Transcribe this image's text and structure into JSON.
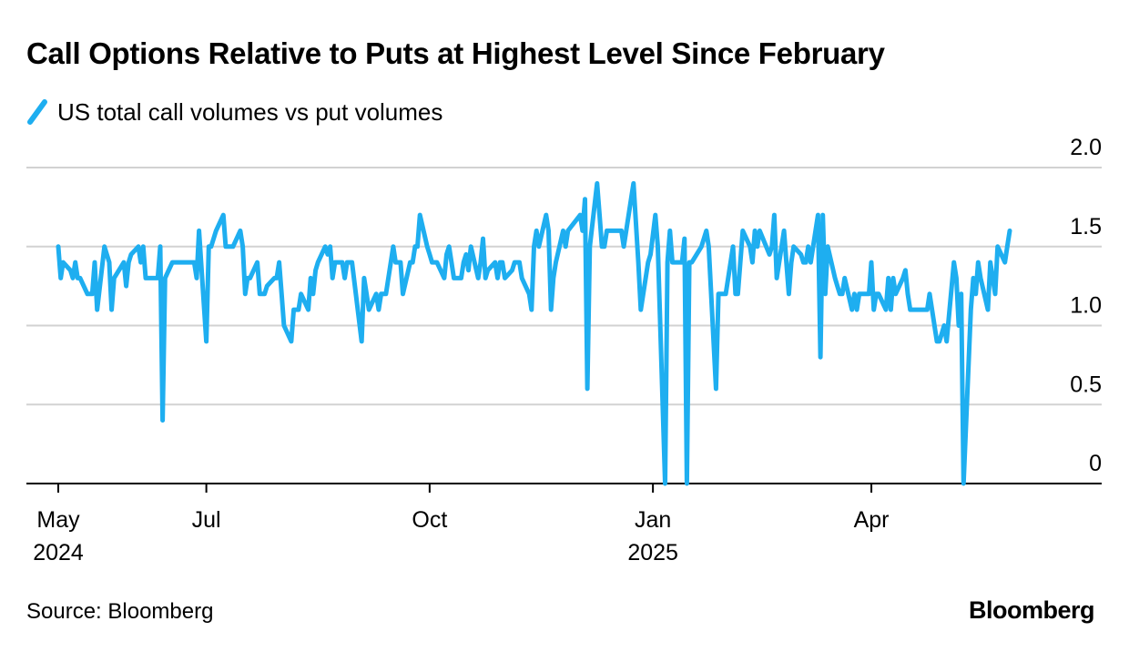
{
  "title": "Call Options Relative to Puts at Highest Level Since February",
  "legend": {
    "label": "US total call volumes vs put volumes",
    "color": "#1eaef0"
  },
  "source": "Source: Bloomberg",
  "brand": "Bloomberg",
  "chart_data": {
    "type": "line",
    "title": "Call Options Relative to Puts at Highest Level Since February",
    "ylim": [
      0,
      2.0
    ],
    "yticks": [
      0,
      0.5,
      1.0,
      1.5,
      2.0
    ],
    "ytick_labels": [
      "0",
      "0.5",
      "1.0",
      "1.5",
      "2.0"
    ],
    "xlim": [
      "2024-05-01",
      "2025-06-30"
    ],
    "xticks": [
      {
        "date": "2024-05-01",
        "label": "May",
        "year": "2024"
      },
      {
        "date": "2024-07-01",
        "label": "Jul",
        "year": ""
      },
      {
        "date": "2024-10-01",
        "label": "Oct",
        "year": ""
      },
      {
        "date": "2025-01-01",
        "label": "Jan",
        "year": "2025"
      },
      {
        "date": "2025-04-01",
        "label": "Apr",
        "year": ""
      }
    ],
    "grid": true,
    "legend_position": "top-left",
    "series": [
      {
        "name": "US total call volumes vs put volumes",
        "color": "#1eaef0",
        "points": [
          [
            "2024-05-01",
            1.5
          ],
          [
            "2024-05-02",
            1.3
          ],
          [
            "2024-05-03",
            1.4
          ],
          [
            "2024-05-06",
            1.35
          ],
          [
            "2024-05-07",
            1.3
          ],
          [
            "2024-05-08",
            1.4
          ],
          [
            "2024-05-09",
            1.3
          ],
          [
            "2024-05-10",
            1.3
          ],
          [
            "2024-05-13",
            1.2
          ],
          [
            "2024-05-14",
            1.2
          ],
          [
            "2024-05-15",
            1.2
          ],
          [
            "2024-05-16",
            1.4
          ],
          [
            "2024-05-17",
            1.1
          ],
          [
            "2024-05-20",
            1.5
          ],
          [
            "2024-05-21",
            1.45
          ],
          [
            "2024-05-22",
            1.4
          ],
          [
            "2024-05-23",
            1.1
          ],
          [
            "2024-05-24",
            1.3
          ],
          [
            "2024-05-28",
            1.4
          ],
          [
            "2024-05-29",
            1.25
          ],
          [
            "2024-05-30",
            1.4
          ],
          [
            "2024-05-31",
            1.45
          ],
          [
            "2024-06-03",
            1.5
          ],
          [
            "2024-06-04",
            1.4
          ],
          [
            "2024-06-05",
            1.5
          ],
          [
            "2024-06-06",
            1.3
          ],
          [
            "2024-06-07",
            1.3
          ],
          [
            "2024-06-10",
            1.3
          ],
          [
            "2024-06-11",
            1.3
          ],
          [
            "2024-06-12",
            1.5
          ],
          [
            "2024-06-13",
            0.4
          ],
          [
            "2024-06-14",
            1.3
          ],
          [
            "2024-06-17",
            1.4
          ],
          [
            "2024-06-18",
            1.4
          ],
          [
            "2024-06-20",
            1.4
          ],
          [
            "2024-06-21",
            1.4
          ],
          [
            "2024-06-24",
            1.4
          ],
          [
            "2024-06-25",
            1.4
          ],
          [
            "2024-06-26",
            1.4
          ],
          [
            "2024-06-27",
            1.3
          ],
          [
            "2024-06-28",
            1.6
          ],
          [
            "2024-07-01",
            0.9
          ],
          [
            "2024-07-02",
            1.5
          ],
          [
            "2024-07-03",
            1.5
          ],
          [
            "2024-07-05",
            1.6
          ],
          [
            "2024-07-08",
            1.7
          ],
          [
            "2024-07-09",
            1.5
          ],
          [
            "2024-07-10",
            1.5
          ],
          [
            "2024-07-11",
            1.5
          ],
          [
            "2024-07-12",
            1.5
          ],
          [
            "2024-07-15",
            1.6
          ],
          [
            "2024-07-16",
            1.5
          ],
          [
            "2024-07-17",
            1.2
          ],
          [
            "2024-07-18",
            1.3
          ],
          [
            "2024-07-19",
            1.3
          ],
          [
            "2024-07-22",
            1.4
          ],
          [
            "2024-07-23",
            1.2
          ],
          [
            "2024-07-24",
            1.2
          ],
          [
            "2024-07-25",
            1.2
          ],
          [
            "2024-07-26",
            1.25
          ],
          [
            "2024-07-29",
            1.3
          ],
          [
            "2024-07-30",
            1.3
          ],
          [
            "2024-07-31",
            1.4
          ],
          [
            "2024-08-01",
            1.2
          ],
          [
            "2024-08-02",
            1.0
          ],
          [
            "2024-08-05",
            0.9
          ],
          [
            "2024-08-06",
            1.1
          ],
          [
            "2024-08-07",
            1.1
          ],
          [
            "2024-08-08",
            1.1
          ],
          [
            "2024-08-09",
            1.2
          ],
          [
            "2024-08-12",
            1.1
          ],
          [
            "2024-08-13",
            1.3
          ],
          [
            "2024-08-14",
            1.2
          ],
          [
            "2024-08-15",
            1.35
          ],
          [
            "2024-08-16",
            1.4
          ],
          [
            "2024-08-19",
            1.5
          ],
          [
            "2024-08-20",
            1.45
          ],
          [
            "2024-08-21",
            1.5
          ],
          [
            "2024-08-22",
            1.3
          ],
          [
            "2024-08-23",
            1.4
          ],
          [
            "2024-08-26",
            1.4
          ],
          [
            "2024-08-27",
            1.3
          ],
          [
            "2024-08-28",
            1.4
          ],
          [
            "2024-08-29",
            1.4
          ],
          [
            "2024-08-30",
            1.4
          ],
          [
            "2024-09-03",
            0.9
          ],
          [
            "2024-09-04",
            1.3
          ],
          [
            "2024-09-05",
            1.2
          ],
          [
            "2024-09-06",
            1.1
          ],
          [
            "2024-09-09",
            1.2
          ],
          [
            "2024-09-10",
            1.1
          ],
          [
            "2024-09-11",
            1.2
          ],
          [
            "2024-09-12",
            1.2
          ],
          [
            "2024-09-13",
            1.2
          ],
          [
            "2024-09-16",
            1.5
          ],
          [
            "2024-09-17",
            1.4
          ],
          [
            "2024-09-18",
            1.4
          ],
          [
            "2024-09-19",
            1.4
          ],
          [
            "2024-09-20",
            1.2
          ],
          [
            "2024-09-23",
            1.4
          ],
          [
            "2024-09-24",
            1.4
          ],
          [
            "2024-09-25",
            1.5
          ],
          [
            "2024-09-26",
            1.5
          ],
          [
            "2024-09-27",
            1.7
          ],
          [
            "2024-09-30",
            1.5
          ],
          [
            "2024-10-01",
            1.45
          ],
          [
            "2024-10-02",
            1.4
          ],
          [
            "2024-10-03",
            1.4
          ],
          [
            "2024-10-04",
            1.4
          ],
          [
            "2024-10-07",
            1.3
          ],
          [
            "2024-10-08",
            1.45
          ],
          [
            "2024-10-09",
            1.5
          ],
          [
            "2024-10-10",
            1.4
          ],
          [
            "2024-10-11",
            1.3
          ],
          [
            "2024-10-14",
            1.3
          ],
          [
            "2024-10-15",
            1.4
          ],
          [
            "2024-10-16",
            1.45
          ],
          [
            "2024-10-17",
            1.35
          ],
          [
            "2024-10-18",
            1.5
          ],
          [
            "2024-10-21",
            1.3
          ],
          [
            "2024-10-22",
            1.4
          ],
          [
            "2024-10-23",
            1.55
          ],
          [
            "2024-10-24",
            1.3
          ],
          [
            "2024-10-25",
            1.35
          ],
          [
            "2024-10-28",
            1.4
          ],
          [
            "2024-10-29",
            1.3
          ],
          [
            "2024-10-30",
            1.4
          ],
          [
            "2024-10-31",
            1.4
          ],
          [
            "2024-11-01",
            1.3
          ],
          [
            "2024-11-04",
            1.35
          ],
          [
            "2024-11-05",
            1.4
          ],
          [
            "2024-11-06",
            1.4
          ],
          [
            "2024-11-07",
            1.4
          ],
          [
            "2024-11-08",
            1.3
          ],
          [
            "2024-11-11",
            1.2
          ],
          [
            "2024-11-12",
            1.1
          ],
          [
            "2024-11-13",
            1.5
          ],
          [
            "2024-11-14",
            1.6
          ],
          [
            "2024-11-15",
            1.5
          ],
          [
            "2024-11-18",
            1.7
          ],
          [
            "2024-11-19",
            1.6
          ],
          [
            "2024-11-20",
            1.1
          ],
          [
            "2024-11-21",
            1.3
          ],
          [
            "2024-11-22",
            1.4
          ],
          [
            "2024-11-25",
            1.6
          ],
          [
            "2024-11-26",
            1.5
          ],
          [
            "2024-11-27",
            1.6
          ],
          [
            "2024-12-02",
            1.7
          ],
          [
            "2024-12-03",
            1.6
          ],
          [
            "2024-12-04",
            1.8
          ],
          [
            "2024-12-05",
            0.6
          ],
          [
            "2024-12-06",
            1.5
          ],
          [
            "2024-12-09",
            1.9
          ],
          [
            "2024-12-10",
            1.7
          ],
          [
            "2024-12-11",
            1.5
          ],
          [
            "2024-12-12",
            1.5
          ],
          [
            "2024-12-13",
            1.6
          ],
          [
            "2024-12-16",
            1.6
          ],
          [
            "2024-12-17",
            1.6
          ],
          [
            "2024-12-18",
            1.6
          ],
          [
            "2024-12-19",
            1.6
          ],
          [
            "2024-12-20",
            1.5
          ],
          [
            "2024-12-23",
            1.8
          ],
          [
            "2024-12-24",
            1.9
          ],
          [
            "2024-12-26",
            1.4
          ],
          [
            "2024-12-27",
            1.1
          ],
          [
            "2024-12-30",
            1.4
          ],
          [
            "2024-12-31",
            1.45
          ],
          [
            "2025-01-02",
            1.7
          ],
          [
            "2025-01-03",
            1.5
          ],
          [
            "2025-01-06",
            0.0
          ],
          [
            "2025-01-07",
            1.4
          ],
          [
            "2025-01-08",
            1.6
          ],
          [
            "2025-01-09",
            1.4
          ],
          [
            "2025-01-10",
            1.4
          ],
          [
            "2025-01-13",
            1.4
          ],
          [
            "2025-01-14",
            1.55
          ],
          [
            "2025-01-15",
            0.0
          ],
          [
            "2025-01-16",
            1.4
          ],
          [
            "2025-01-17",
            1.4
          ],
          [
            "2025-01-21",
            1.5
          ],
          [
            "2025-01-22",
            1.55
          ],
          [
            "2025-01-23",
            1.6
          ],
          [
            "2025-01-24",
            1.5
          ],
          [
            "2025-01-27",
            0.6
          ],
          [
            "2025-01-28",
            1.2
          ],
          [
            "2025-01-29",
            1.2
          ],
          [
            "2025-01-30",
            1.2
          ],
          [
            "2025-01-31",
            1.2
          ],
          [
            "2025-02-03",
            1.5
          ],
          [
            "2025-02-04",
            1.2
          ],
          [
            "2025-02-05",
            1.2
          ],
          [
            "2025-02-06",
            1.4
          ],
          [
            "2025-02-07",
            1.6
          ],
          [
            "2025-02-10",
            1.5
          ],
          [
            "2025-02-11",
            1.4
          ],
          [
            "2025-02-12",
            1.6
          ],
          [
            "2025-02-13",
            1.5
          ],
          [
            "2025-02-14",
            1.6
          ],
          [
            "2025-02-18",
            1.45
          ],
          [
            "2025-02-19",
            1.5
          ],
          [
            "2025-02-20",
            1.7
          ],
          [
            "2025-02-21",
            1.3
          ],
          [
            "2025-02-24",
            1.6
          ],
          [
            "2025-02-25",
            1.4
          ],
          [
            "2025-02-26",
            1.2
          ],
          [
            "2025-02-27",
            1.4
          ],
          [
            "2025-02-28",
            1.5
          ],
          [
            "2025-03-03",
            1.45
          ],
          [
            "2025-03-04",
            1.4
          ],
          [
            "2025-03-05",
            1.4
          ],
          [
            "2025-03-06",
            1.5
          ],
          [
            "2025-03-07",
            1.4
          ],
          [
            "2025-03-10",
            1.7
          ],
          [
            "2025-03-11",
            0.8
          ],
          [
            "2025-03-12",
            1.7
          ],
          [
            "2025-03-13",
            1.2
          ],
          [
            "2025-03-14",
            1.5
          ],
          [
            "2025-03-17",
            1.3
          ],
          [
            "2025-03-18",
            1.25
          ],
          [
            "2025-03-19",
            1.2
          ],
          [
            "2025-03-20",
            1.2
          ],
          [
            "2025-03-21",
            1.3
          ],
          [
            "2025-03-24",
            1.1
          ],
          [
            "2025-03-25",
            1.2
          ],
          [
            "2025-03-26",
            1.1
          ],
          [
            "2025-03-27",
            1.2
          ],
          [
            "2025-03-28",
            1.2
          ],
          [
            "2025-03-31",
            1.2
          ],
          [
            "2025-04-01",
            1.4
          ],
          [
            "2025-04-02",
            1.1
          ],
          [
            "2025-04-03",
            1.2
          ],
          [
            "2025-04-04",
            1.2
          ],
          [
            "2025-04-07",
            1.1
          ],
          [
            "2025-04-08",
            1.3
          ],
          [
            "2025-04-09",
            1.1
          ],
          [
            "2025-04-10",
            1.3
          ],
          [
            "2025-04-11",
            1.2
          ],
          [
            "2025-04-14",
            1.3
          ],
          [
            "2025-04-15",
            1.35
          ],
          [
            "2025-04-16",
            1.2
          ],
          [
            "2025-04-17",
            1.1
          ],
          [
            "2025-04-21",
            1.1
          ],
          [
            "2025-04-22",
            1.1
          ],
          [
            "2025-04-23",
            1.1
          ],
          [
            "2025-04-24",
            1.1
          ],
          [
            "2025-04-25",
            1.2
          ],
          [
            "2025-04-28",
            0.9
          ],
          [
            "2025-04-29",
            0.9
          ],
          [
            "2025-04-30",
            0.95
          ],
          [
            "2025-05-01",
            1.0
          ],
          [
            "2025-05-02",
            0.9
          ],
          [
            "2025-05-05",
            1.4
          ],
          [
            "2025-05-06",
            1.3
          ],
          [
            "2025-05-07",
            1.0
          ],
          [
            "2025-05-08",
            1.2
          ],
          [
            "2025-05-09",
            0.0
          ],
          [
            "2025-05-12",
            1.1
          ],
          [
            "2025-05-13",
            1.3
          ],
          [
            "2025-05-14",
            1.2
          ],
          [
            "2025-05-15",
            1.4
          ],
          [
            "2025-05-16",
            1.3
          ],
          [
            "2025-05-19",
            1.1
          ],
          [
            "2025-05-20",
            1.4
          ],
          [
            "2025-05-21",
            1.3
          ],
          [
            "2025-05-22",
            1.2
          ],
          [
            "2025-05-23",
            1.5
          ],
          [
            "2025-05-26",
            1.4
          ],
          [
            "2025-05-27",
            1.5
          ],
          [
            "2025-05-28",
            1.6
          ]
        ]
      }
    ]
  }
}
